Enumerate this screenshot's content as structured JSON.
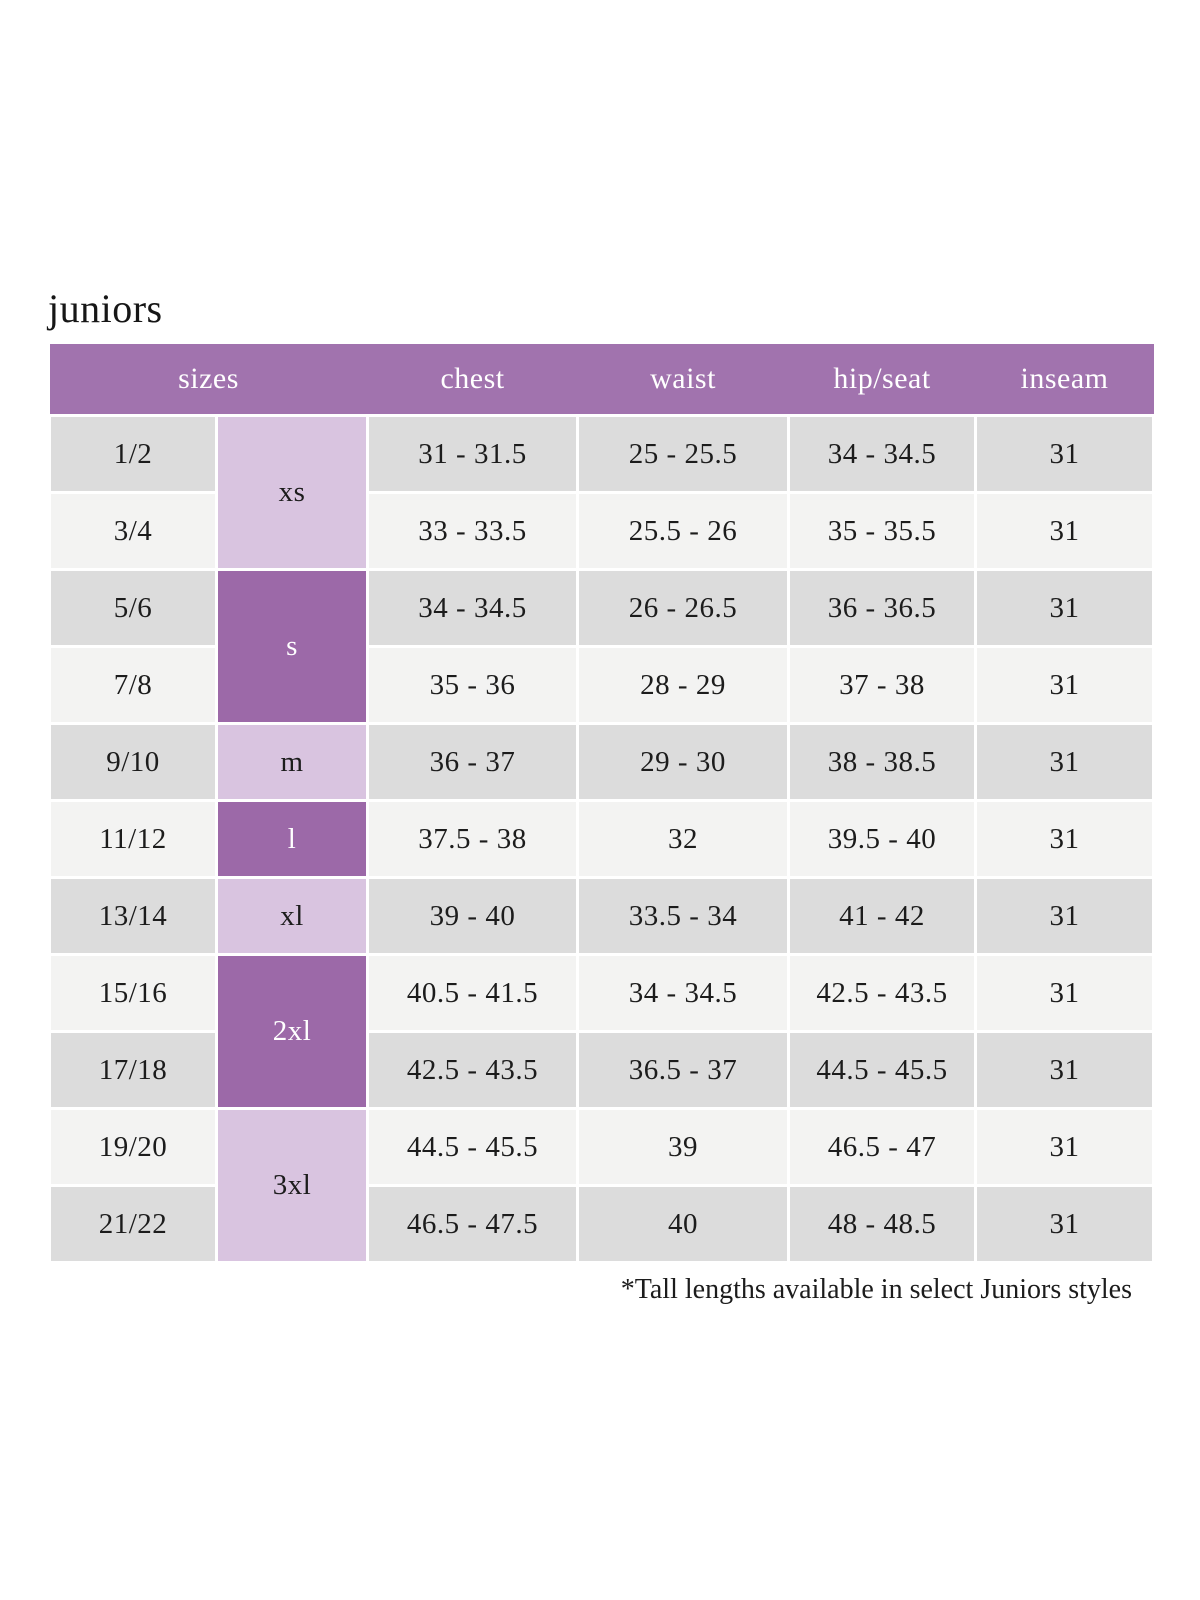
{
  "page": {
    "title": "juniors",
    "footnote": "*Tall lengths available in select Juniors styles"
  },
  "colors": {
    "header_bg": "#a173ae",
    "group_dark_bg": "#9c69a8",
    "group_light_bg": "#d9c4e0",
    "row_dark_bg": "#dcdcdc",
    "row_light_bg": "#f3f3f2",
    "header_text": "#ffffff",
    "body_text": "#1c1c1c"
  },
  "chart_data": {
    "type": "table",
    "title": "juniors",
    "headers": [
      "sizes",
      "chest",
      "waist",
      "hip/seat",
      "inseam"
    ],
    "size_groups": [
      {
        "label": "xs",
        "span": 2,
        "tone": "light"
      },
      {
        "label": "s",
        "span": 2,
        "tone": "dark"
      },
      {
        "label": "m",
        "span": 1,
        "tone": "light"
      },
      {
        "label": "l",
        "span": 1,
        "tone": "dark"
      },
      {
        "label": "xl",
        "span": 1,
        "tone": "light"
      },
      {
        "label": "2xl",
        "span": 2,
        "tone": "dark"
      },
      {
        "label": "3xl",
        "span": 2,
        "tone": "light"
      }
    ],
    "rows": [
      {
        "size": "1/2",
        "chest": "31 - 31.5",
        "waist": "25 - 25.5",
        "hip_seat": "34 - 34.5",
        "inseam": "31"
      },
      {
        "size": "3/4",
        "chest": "33 - 33.5",
        "waist": "25.5 - 26",
        "hip_seat": "35 - 35.5",
        "inseam": "31"
      },
      {
        "size": "5/6",
        "chest": "34 - 34.5",
        "waist": "26 - 26.5",
        "hip_seat": "36 - 36.5",
        "inseam": "31"
      },
      {
        "size": "7/8",
        "chest": "35 - 36",
        "waist": "28 - 29",
        "hip_seat": "37 - 38",
        "inseam": "31"
      },
      {
        "size": "9/10",
        "chest": "36 - 37",
        "waist": "29 - 30",
        "hip_seat": "38 - 38.5",
        "inseam": "31"
      },
      {
        "size": "11/12",
        "chest": "37.5 - 38",
        "waist": "32",
        "hip_seat": "39.5 - 40",
        "inseam": "31"
      },
      {
        "size": "13/14",
        "chest": "39 - 40",
        "waist": "33.5 - 34",
        "hip_seat": "41 - 42",
        "inseam": "31"
      },
      {
        "size": "15/16",
        "chest": "40.5 - 41.5",
        "waist": "34 - 34.5",
        "hip_seat": "42.5 - 43.5",
        "inseam": "31"
      },
      {
        "size": "17/18",
        "chest": "42.5 - 43.5",
        "waist": "36.5 - 37",
        "hip_seat": "44.5 - 45.5",
        "inseam": "31"
      },
      {
        "size": "19/20",
        "chest": "44.5 - 45.5",
        "waist": "39",
        "hip_seat": "46.5 - 47",
        "inseam": "31"
      },
      {
        "size": "21/22",
        "chest": "46.5 - 47.5",
        "waist": "40",
        "hip_seat": "48 - 48.5",
        "inseam": "31"
      }
    ],
    "footnote": "*Tall lengths available in select Juniors styles"
  }
}
